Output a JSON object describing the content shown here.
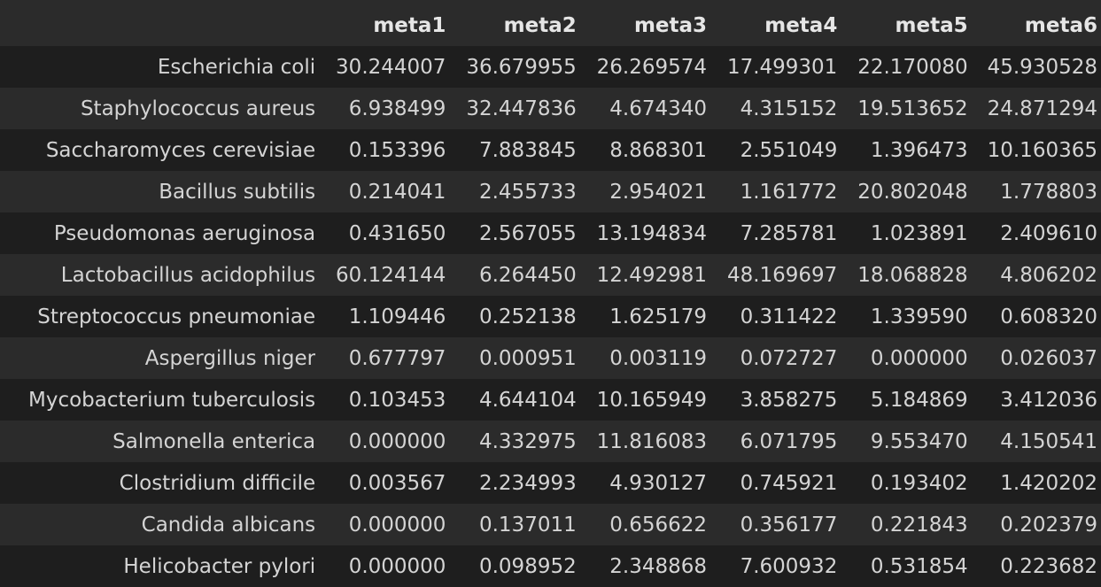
{
  "table": {
    "columns": [
      "meta1",
      "meta2",
      "meta3",
      "meta4",
      "meta5",
      "meta6"
    ],
    "rows": [
      {
        "label": "Escherichia coli",
        "values": [
          "30.244007",
          "36.679955",
          "26.269574",
          "17.499301",
          "22.170080",
          "45.930528"
        ]
      },
      {
        "label": "Staphylococcus aureus",
        "values": [
          "6.938499",
          "32.447836",
          "4.674340",
          "4.315152",
          "19.513652",
          "24.871294"
        ]
      },
      {
        "label": "Saccharomyces cerevisiae",
        "values": [
          "0.153396",
          "7.883845",
          "8.868301",
          "2.551049",
          "1.396473",
          "10.160365"
        ]
      },
      {
        "label": "Bacillus subtilis",
        "values": [
          "0.214041",
          "2.455733",
          "2.954021",
          "1.161772",
          "20.802048",
          "1.778803"
        ]
      },
      {
        "label": "Pseudomonas aeruginosa",
        "values": [
          "0.431650",
          "2.567055",
          "13.194834",
          "7.285781",
          "1.023891",
          "2.409610"
        ]
      },
      {
        "label": "Lactobacillus acidophilus",
        "values": [
          "60.124144",
          "6.264450",
          "12.492981",
          "48.169697",
          "18.068828",
          "4.806202"
        ]
      },
      {
        "label": "Streptococcus pneumoniae",
        "values": [
          "1.109446",
          "0.252138",
          "1.625179",
          "0.311422",
          "1.339590",
          "0.608320"
        ]
      },
      {
        "label": "Aspergillus niger",
        "values": [
          "0.677797",
          "0.000951",
          "0.003119",
          "0.072727",
          "0.000000",
          "0.026037"
        ]
      },
      {
        "label": "Mycobacterium tuberculosis",
        "values": [
          "0.103453",
          "4.644104",
          "10.165949",
          "3.858275",
          "5.184869",
          "3.412036"
        ]
      },
      {
        "label": "Salmonella enterica",
        "values": [
          "0.000000",
          "4.332975",
          "11.816083",
          "6.071795",
          "9.553470",
          "4.150541"
        ]
      },
      {
        "label": "Clostridium difficile",
        "values": [
          "0.003567",
          "2.234993",
          "4.930127",
          "0.745921",
          "0.193402",
          "1.420202"
        ]
      },
      {
        "label": "Candida albicans",
        "values": [
          "0.000000",
          "0.137011",
          "0.656622",
          "0.356177",
          "0.221843",
          "0.202379"
        ]
      },
      {
        "label": "Helicobacter pylori",
        "values": [
          "0.000000",
          "0.098952",
          "2.348868",
          "7.600932",
          "0.531854",
          "0.223682"
        ]
      }
    ]
  }
}
